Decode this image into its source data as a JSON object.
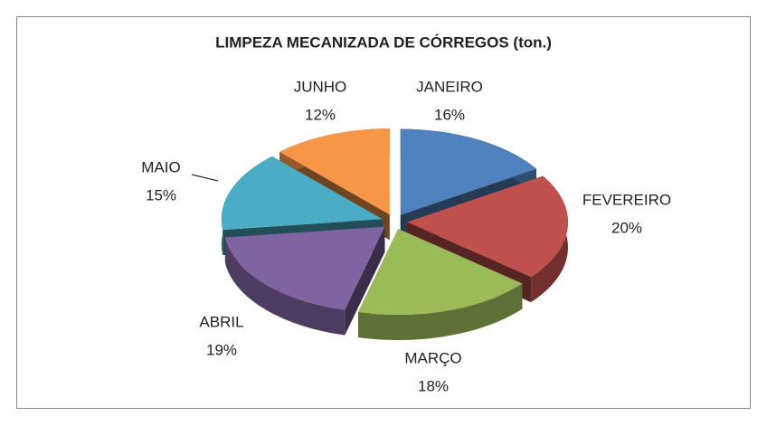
{
  "chart_data": {
    "type": "pie3d",
    "title": "LIMPEZA MECANIZADA DE CÓRREGOS (ton.)",
    "categories": [
      "JANEIRO",
      "FEVEREIRO",
      "MARÇO",
      "ABRIL",
      "MAIO",
      "JUNHO"
    ],
    "values": [
      16,
      20,
      18,
      19,
      15,
      12
    ],
    "value_labels": [
      "16%",
      "20%",
      "18%",
      "19%",
      "15%",
      "12%"
    ],
    "colors": [
      "#4f81bd",
      "#c0504d",
      "#9bbb59",
      "#8064a2",
      "#4bacc6",
      "#f79646"
    ]
  }
}
